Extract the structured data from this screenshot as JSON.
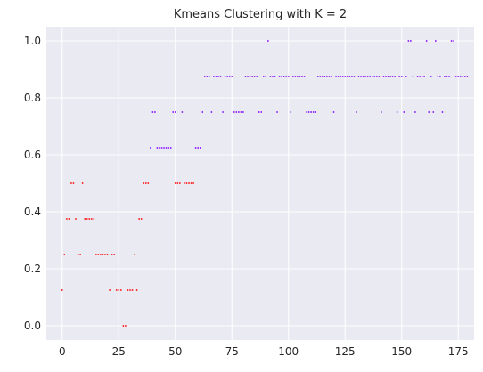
{
  "chart_data": {
    "type": "scatter",
    "title": "Kmeans Clustering with K = 2",
    "xlabel": "",
    "ylabel": "",
    "xlim": [
      -7,
      182
    ],
    "ylim": [
      -0.05,
      1.05
    ],
    "x_ticks": [
      0,
      25,
      50,
      75,
      100,
      125,
      150,
      175
    ],
    "x_tick_labels": [
      "0",
      "25",
      "50",
      "75",
      "100",
      "125",
      "150",
      "175"
    ],
    "y_ticks": [
      0.0,
      0.2,
      0.4,
      0.6,
      0.8,
      1.0
    ],
    "y_tick_labels": [
      "0.0",
      "0.2",
      "0.4",
      "0.6",
      "0.8",
      "1.0"
    ],
    "grid": true,
    "background": "#eaeaf2",
    "grid_color": "#ffffff",
    "series": [
      {
        "color": "#ff0000",
        "points": [
          [
            0,
            0.125
          ],
          [
            1,
            0.25
          ],
          [
            2,
            0.375
          ],
          [
            3,
            0.375
          ],
          [
            4,
            0.5
          ],
          [
            5,
            0.5
          ],
          [
            6,
            0.375
          ],
          [
            7,
            0.25
          ],
          [
            8,
            0.25
          ],
          [
            9,
            0.5
          ],
          [
            10,
            0.375
          ],
          [
            11,
            0.375
          ],
          [
            12,
            0.375
          ],
          [
            13,
            0.375
          ],
          [
            14,
            0.375
          ],
          [
            15,
            0.25
          ],
          [
            16,
            0.25
          ],
          [
            17,
            0.25
          ],
          [
            18,
            0.25
          ],
          [
            19,
            0.25
          ],
          [
            20,
            0.25
          ],
          [
            21,
            0.125
          ],
          [
            22,
            0.25
          ],
          [
            23,
            0.25
          ],
          [
            24,
            0.125
          ],
          [
            25,
            0.125
          ],
          [
            26,
            0.125
          ],
          [
            27,
            0.0
          ],
          [
            28,
            0.0
          ],
          [
            29,
            0.125
          ],
          [
            30,
            0.125
          ],
          [
            31,
            0.125
          ],
          [
            32,
            0.25
          ],
          [
            33,
            0.125
          ],
          [
            34,
            0.375
          ],
          [
            35,
            0.375
          ],
          [
            36,
            0.5
          ],
          [
            37,
            0.5
          ],
          [
            38,
            0.5
          ],
          [
            50,
            0.5
          ],
          [
            51,
            0.5
          ],
          [
            52,
            0.5
          ],
          [
            54,
            0.5
          ],
          [
            55,
            0.5
          ],
          [
            56,
            0.5
          ],
          [
            57,
            0.5
          ],
          [
            58,
            0.5
          ]
        ]
      },
      {
        "color": "#8000ff",
        "points": [
          [
            39,
            0.625
          ],
          [
            40,
            0.75
          ],
          [
            41,
            0.75
          ],
          [
            42,
            0.625
          ],
          [
            43,
            0.625
          ],
          [
            44,
            0.625
          ],
          [
            45,
            0.625
          ],
          [
            46,
            0.625
          ],
          [
            47,
            0.625
          ],
          [
            48,
            0.625
          ],
          [
            49,
            0.75
          ],
          [
            50,
            0.75
          ],
          [
            53,
            0.75
          ],
          [
            59,
            0.625
          ],
          [
            60,
            0.625
          ],
          [
            61,
            0.625
          ],
          [
            62,
            0.75
          ],
          [
            63,
            0.875
          ],
          [
            64,
            0.875
          ],
          [
            65,
            0.875
          ],
          [
            66,
            0.75
          ],
          [
            67,
            0.875
          ],
          [
            68,
            0.875
          ],
          [
            69,
            0.875
          ],
          [
            70,
            0.875
          ],
          [
            71,
            0.75
          ],
          [
            72,
            0.875
          ],
          [
            73,
            0.875
          ],
          [
            74,
            0.875
          ],
          [
            75,
            0.875
          ],
          [
            76,
            0.75
          ],
          [
            77,
            0.75
          ],
          [
            78,
            0.75
          ],
          [
            79,
            0.75
          ],
          [
            80,
            0.75
          ],
          [
            81,
            0.875
          ],
          [
            82,
            0.875
          ],
          [
            83,
            0.875
          ],
          [
            84,
            0.875
          ],
          [
            85,
            0.875
          ],
          [
            86,
            0.875
          ],
          [
            87,
            0.75
          ],
          [
            88,
            0.75
          ],
          [
            89,
            0.875
          ],
          [
            90,
            0.875
          ],
          [
            91,
            1.0
          ],
          [
            92,
            0.875
          ],
          [
            93,
            0.875
          ],
          [
            94,
            0.875
          ],
          [
            95,
            0.75
          ],
          [
            96,
            0.875
          ],
          [
            97,
            0.875
          ],
          [
            98,
            0.875
          ],
          [
            99,
            0.875
          ],
          [
            100,
            0.875
          ],
          [
            101,
            0.75
          ],
          [
            102,
            0.875
          ],
          [
            103,
            0.875
          ],
          [
            104,
            0.875
          ],
          [
            105,
            0.875
          ],
          [
            106,
            0.875
          ],
          [
            107,
            0.875
          ],
          [
            108,
            0.75
          ],
          [
            109,
            0.75
          ],
          [
            110,
            0.75
          ],
          [
            111,
            0.75
          ],
          [
            112,
            0.75
          ],
          [
            113,
            0.875
          ],
          [
            114,
            0.875
          ],
          [
            115,
            0.875
          ],
          [
            116,
            0.875
          ],
          [
            117,
            0.875
          ],
          [
            118,
            0.875
          ],
          [
            119,
            0.875
          ],
          [
            120,
            0.75
          ],
          [
            121,
            0.875
          ],
          [
            122,
            0.875
          ],
          [
            123,
            0.875
          ],
          [
            124,
            0.875
          ],
          [
            125,
            0.875
          ],
          [
            126,
            0.875
          ],
          [
            127,
            0.875
          ],
          [
            128,
            0.875
          ],
          [
            129,
            0.875
          ],
          [
            130,
            0.75
          ],
          [
            131,
            0.875
          ],
          [
            132,
            0.875
          ],
          [
            133,
            0.875
          ],
          [
            134,
            0.875
          ],
          [
            135,
            0.875
          ],
          [
            136,
            0.875
          ],
          [
            137,
            0.875
          ],
          [
            138,
            0.875
          ],
          [
            139,
            0.875
          ],
          [
            140,
            0.875
          ],
          [
            141,
            0.75
          ],
          [
            142,
            0.875
          ],
          [
            143,
            0.875
          ],
          [
            144,
            0.875
          ],
          [
            145,
            0.875
          ],
          [
            146,
            0.875
          ],
          [
            147,
            0.875
          ],
          [
            148,
            0.75
          ],
          [
            149,
            0.875
          ],
          [
            150,
            0.875
          ],
          [
            151,
            0.75
          ],
          [
            152,
            0.875
          ],
          [
            153,
            1.0
          ],
          [
            154,
            1.0
          ],
          [
            155,
            0.875
          ],
          [
            156,
            0.75
          ],
          [
            157,
            0.875
          ],
          [
            158,
            0.875
          ],
          [
            159,
            0.875
          ],
          [
            160,
            0.875
          ],
          [
            161,
            1.0
          ],
          [
            162,
            0.75
          ],
          [
            163,
            0.875
          ],
          [
            164,
            0.75
          ],
          [
            165,
            1.0
          ],
          [
            166,
            0.875
          ],
          [
            167,
            0.875
          ],
          [
            168,
            0.75
          ],
          [
            169,
            0.875
          ],
          [
            170,
            0.875
          ],
          [
            171,
            0.875
          ],
          [
            172,
            1.0
          ],
          [
            173,
            1.0
          ],
          [
            174,
            0.875
          ],
          [
            175,
            0.875
          ],
          [
            176,
            0.875
          ],
          [
            177,
            0.875
          ],
          [
            178,
            0.875
          ],
          [
            179,
            0.875
          ]
        ]
      }
    ]
  }
}
